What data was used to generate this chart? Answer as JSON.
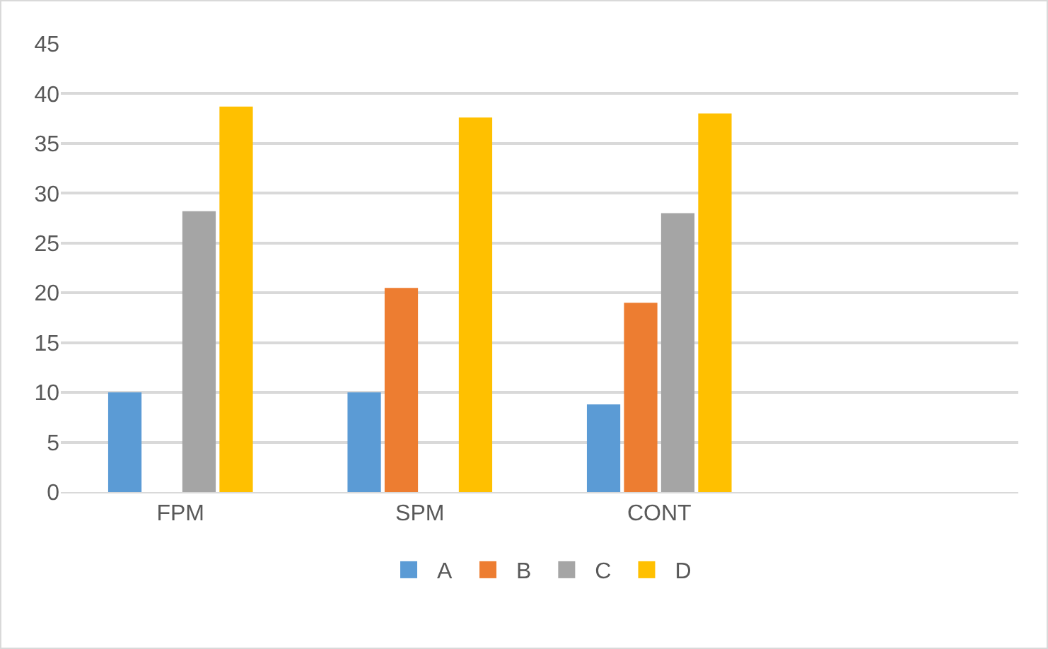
{
  "chart_data": {
    "type": "bar",
    "categories": [
      "FPM",
      "SPM",
      "CONT",
      null
    ],
    "series": [
      {
        "name": "A",
        "color": "#5b9bd5",
        "values": [
          10,
          10,
          8.8,
          null
        ]
      },
      {
        "name": "B",
        "color": "#ed7d31",
        "values": [
          null,
          20.5,
          19,
          null
        ]
      },
      {
        "name": "C",
        "color": "#a5a5a5",
        "values": [
          28.2,
          null,
          28,
          null
        ]
      },
      {
        "name": "D",
        "color": "#ffc000",
        "values": [
          38.7,
          37.6,
          38,
          null
        ]
      }
    ],
    "ylim": [
      0,
      45
    ],
    "yticks": [
      0,
      5,
      10,
      15,
      20,
      25,
      30,
      35,
      40,
      45
    ],
    "grid": "y",
    "legend": "bottom"
  }
}
